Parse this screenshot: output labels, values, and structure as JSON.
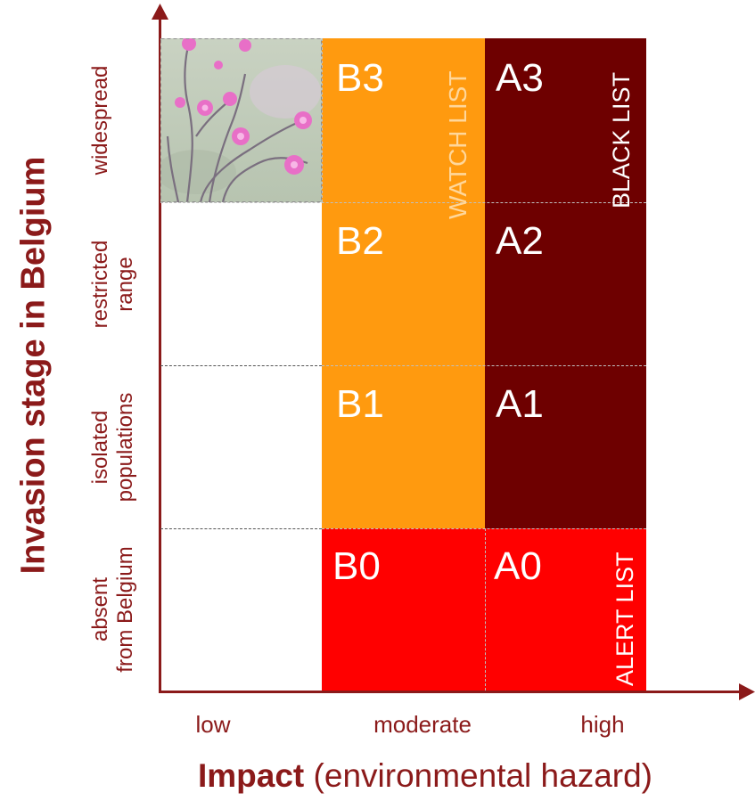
{
  "y_axis": {
    "title": "Invasion stage in Belgium"
  },
  "x_axis": {
    "title_bold": "Impact",
    "title_rest": " (environmental hazard)"
  },
  "rows": [
    {
      "line1": "widespread",
      "line2": ""
    },
    {
      "line1": "restricted",
      "line2": "range"
    },
    {
      "line1": "isolated",
      "line2": "populations"
    },
    {
      "line1": "absent",
      "line2": "from Belgium"
    }
  ],
  "columns": [
    "low",
    "moderate",
    "high"
  ],
  "cells": {
    "B3": "B3",
    "B2": "B2",
    "B1": "B1",
    "B0": "B0",
    "A3": "A3",
    "A2": "A2",
    "A1": "A1",
    "A0": "A0"
  },
  "lists": {
    "watch": "WATCH  LIST",
    "black": "BLACK  LIST",
    "alert": "ALERT LIST"
  },
  "colors": {
    "axis": "#8b1a1a",
    "orange": "#ff9a0f",
    "dark_red": "#6e0000",
    "red": "#ff0000"
  }
}
